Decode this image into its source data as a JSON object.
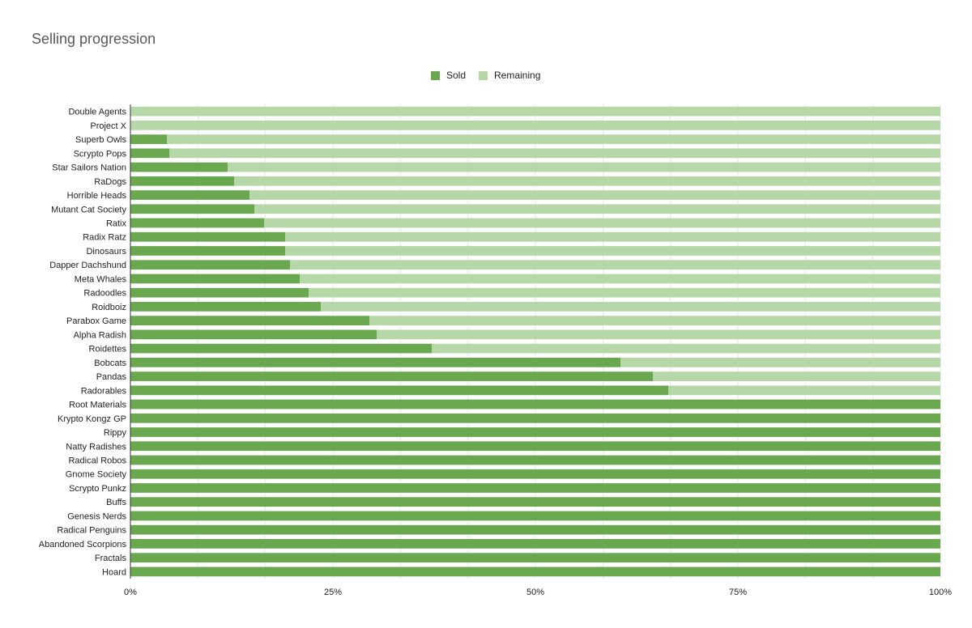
{
  "chart_data": {
    "type": "bar",
    "orientation": "horizontal",
    "stacked": "100%",
    "title": "Selling progression",
    "xlabel": "",
    "ylabel": "",
    "xlim": [
      0,
      100
    ],
    "x_ticks": [
      "0%",
      "25%",
      "50%",
      "75%",
      "100%"
    ],
    "grid": true,
    "legend": "top",
    "colors": {
      "Sold": "#6aa84f",
      "Remaining": "#b6d7a8"
    },
    "categories": [
      "Double Agents",
      "Project X",
      "Superb Owls",
      "Scrypto Pops",
      "Star Sailors Nation",
      "RaDogs",
      "Horrible Heads",
      "Mutant Cat Society",
      "Ratix",
      "Radix Ratz",
      "Dinosaurs",
      "Dapper Dachshund",
      "Meta Whales",
      "Radoodles",
      "Roidboiz",
      "Parabox Game",
      "Alpha Radish",
      "Roidettes",
      "Bobcats",
      "Pandas",
      "Radorables",
      "Root Materials",
      "Krypto Kongz GP",
      "Rippy",
      "Natty Radishes",
      "Radical Robos",
      "Gnome Society",
      "Scrypto Punkz",
      "Buffs",
      "Genesis Nerds",
      "Radical Penguins",
      "Abandoned Scorpions",
      "Fractals",
      "Hoard"
    ],
    "series": [
      {
        "name": "Sold",
        "values": [
          0,
          0,
          4.5,
          4.8,
          12,
          12.8,
          14.7,
          15.3,
          16.5,
          19.1,
          19.1,
          19.7,
          20.9,
          22,
          23.5,
          29.5,
          30.4,
          37.2,
          60.5,
          64.5,
          66.4,
          100,
          100,
          100,
          100,
          100,
          100,
          100,
          100,
          100,
          100,
          100,
          100,
          100
        ]
      },
      {
        "name": "Remaining",
        "values": [
          100,
          100,
          95.5,
          95.2,
          88,
          87.2,
          85.3,
          84.7,
          83.5,
          80.9,
          80.9,
          80.3,
          79.1,
          78,
          76.5,
          70.5,
          69.6,
          62.8,
          39.5,
          35.5,
          33.6,
          0,
          0,
          0,
          0,
          0,
          0,
          0,
          0,
          0,
          0,
          0,
          0,
          0
        ]
      }
    ]
  }
}
